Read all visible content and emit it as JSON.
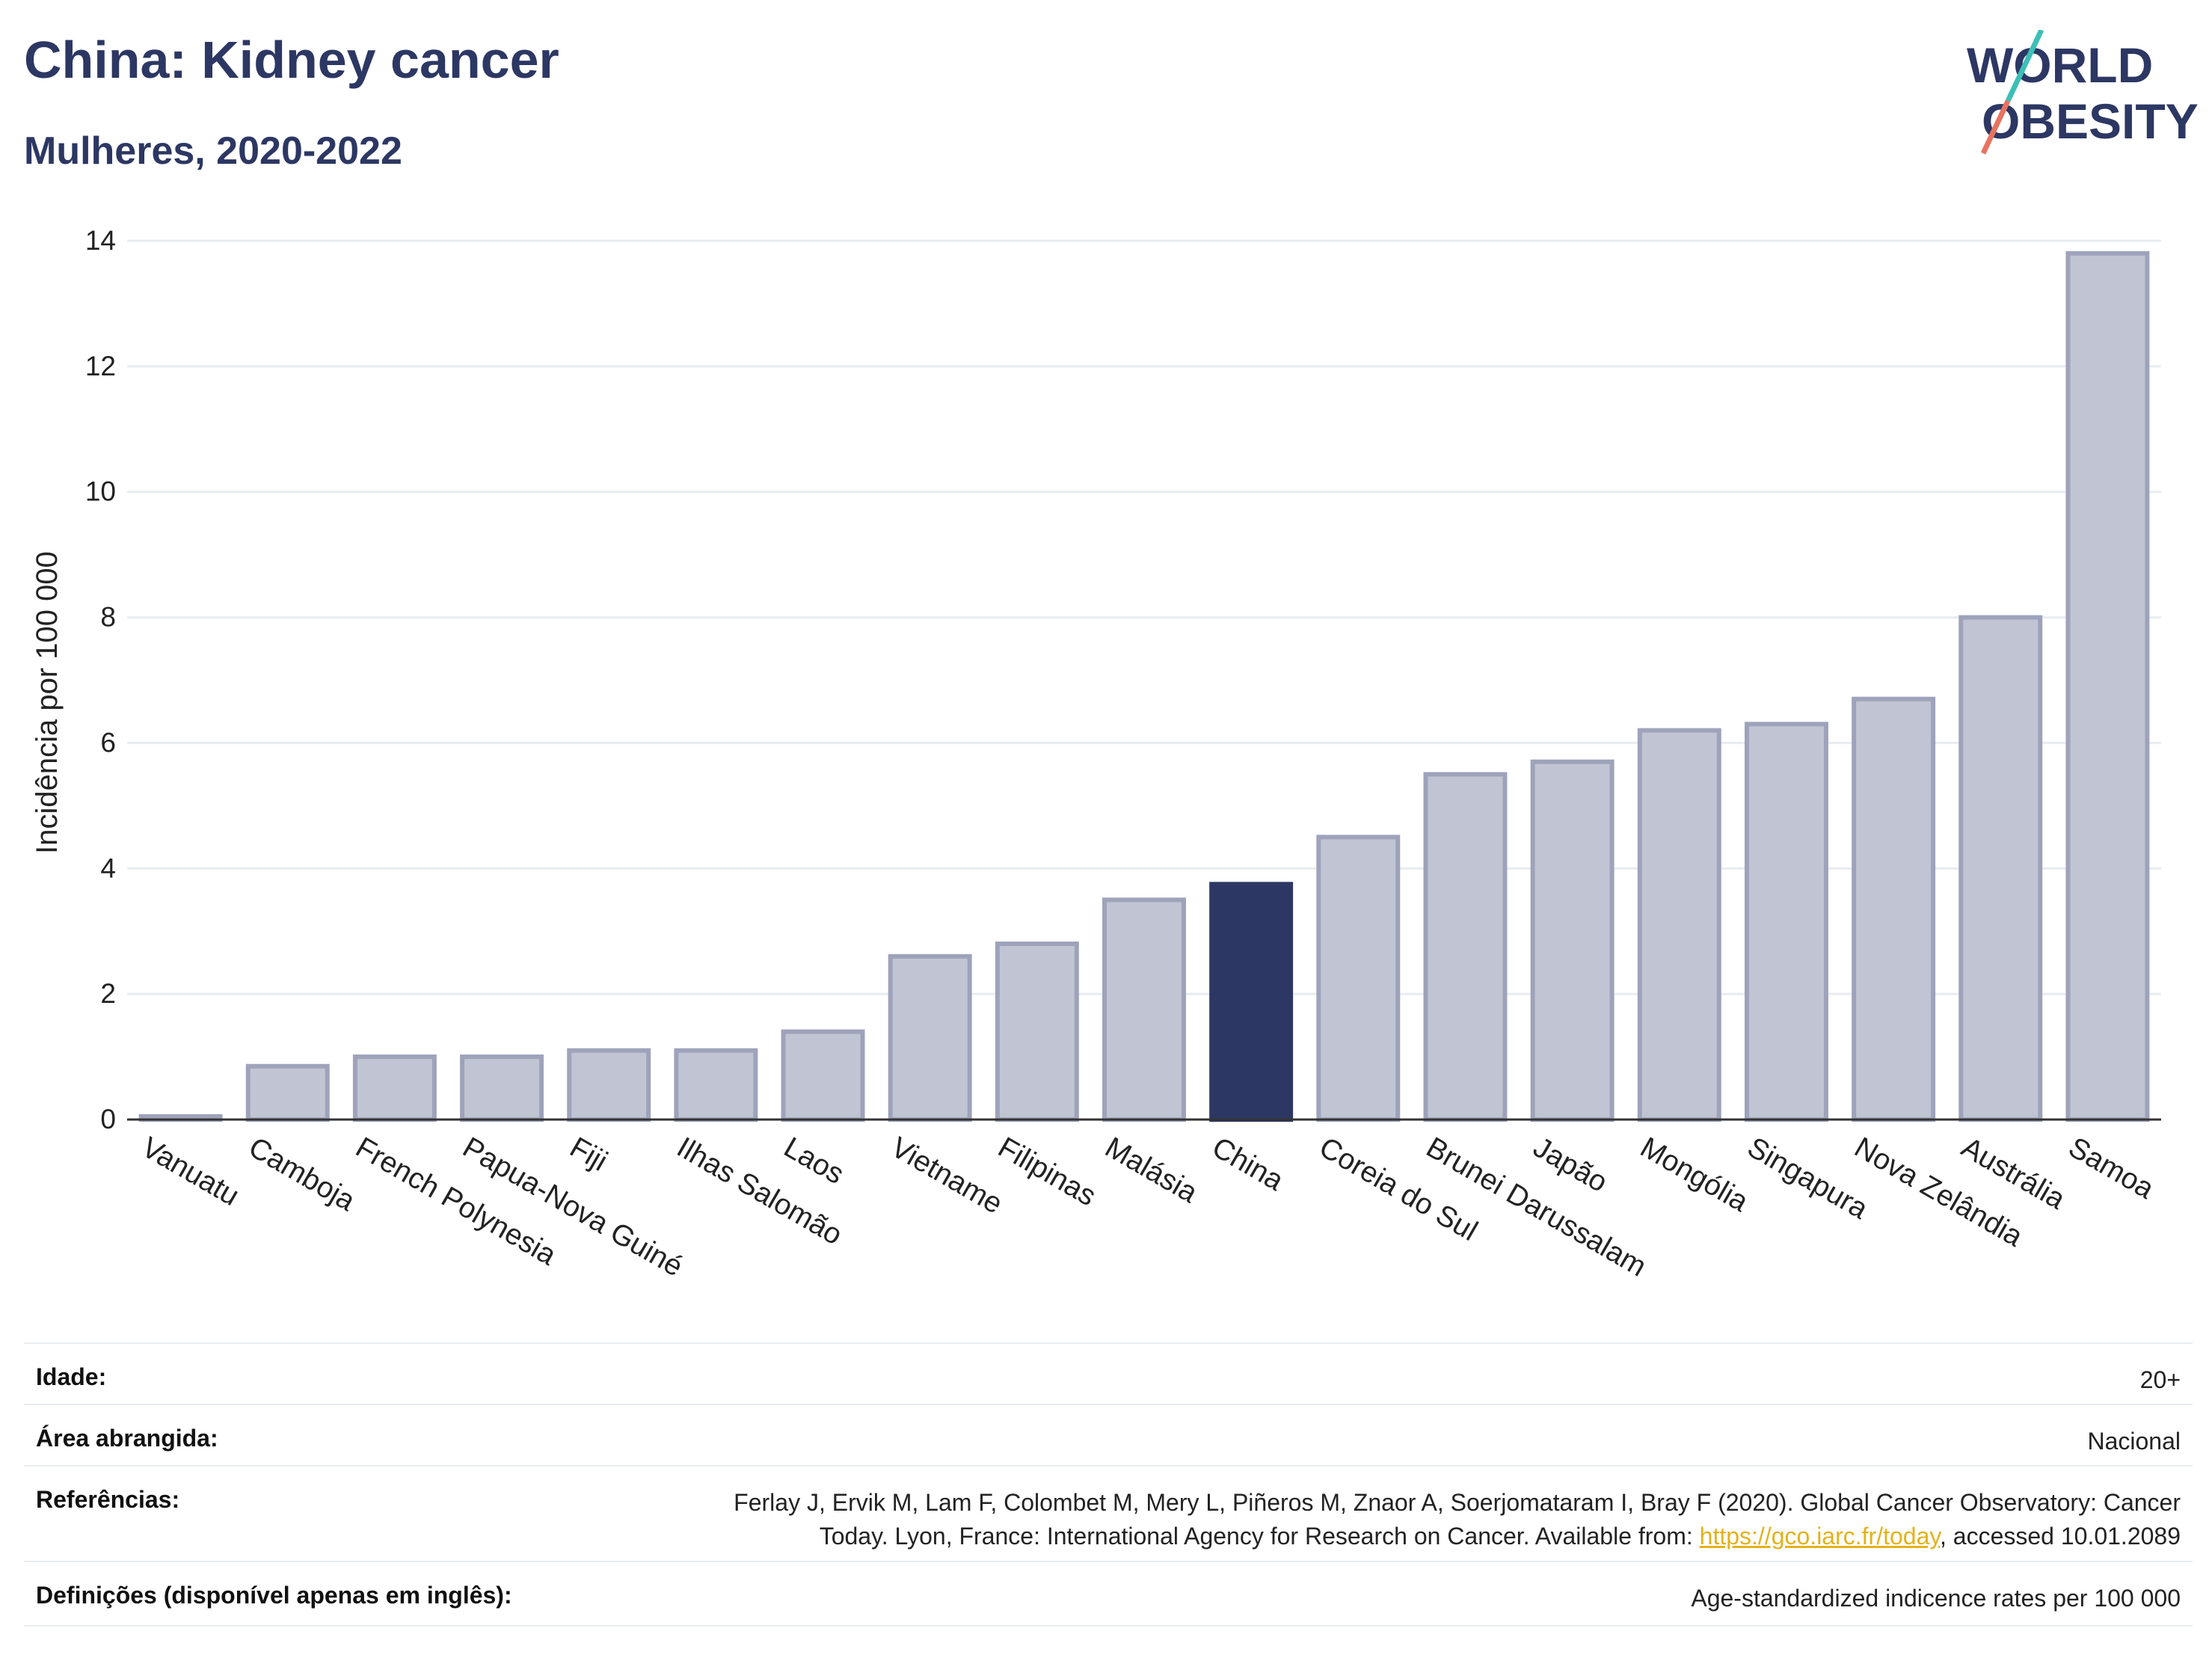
{
  "header": {
    "title": "China: Kidney cancer",
    "subtitle": "Mulheres, 2020-2022"
  },
  "logo": {
    "line1": "WORLD",
    "line2": "OBESITY"
  },
  "chart_data": {
    "type": "bar",
    "ylabel": "Incidência por 100 000",
    "ylim": [
      0,
      14
    ],
    "yticks": [
      0,
      2,
      4,
      6,
      8,
      10,
      12,
      14
    ],
    "grid": true,
    "categories": [
      "Vanuatu",
      "Camboja",
      "French Polynesia",
      "Papua-Nova Guiné",
      "Fiji",
      "Ilhas Salomão",
      "Laos",
      "Vietname",
      "Filipinas",
      "Malásia",
      "China",
      "Coreia do Sul",
      "Brunei Darussalam",
      "Japão",
      "Mongólia",
      "Singapura",
      "Nova Zelândia",
      "Austrália",
      "Samoa"
    ],
    "values": [
      0.05,
      0.85,
      1.0,
      1.0,
      1.1,
      1.1,
      1.4,
      2.6,
      2.8,
      3.5,
      3.75,
      4.5,
      5.5,
      5.7,
      6.2,
      6.3,
      6.7,
      8.0,
      13.8
    ],
    "highlight": "China",
    "colors": {
      "bar": "#c1c5d3",
      "bar_border": "#9ea3bb",
      "highlight": "#2c3763",
      "axis": "#333333",
      "grid": "#e8ecf0"
    }
  },
  "meta": {
    "age_label": "Idade:",
    "age_value": "20+",
    "area_label": "Área abrangida:",
    "area_value": "Nacional",
    "refs_label": "Referências:",
    "refs_line1": "Ferlay J, Ervik M, Lam F, Colombet M, Mery L, Piñeros M, Znaor A, Soerjomataram I, Bray F (2020). Global Cancer Observatory: Cancer",
    "refs_line2_pre": "Today. Lyon, France: International Agency for Research on Cancer. Available from: ",
    "refs_link": "https://gco.iarc.fr/today",
    "refs_line2_post": ", accessed 10.01.2089",
    "defs_label": "Definições (disponível apenas em inglês):",
    "defs_value": "Age-standardized indicence rates per 100 000"
  }
}
